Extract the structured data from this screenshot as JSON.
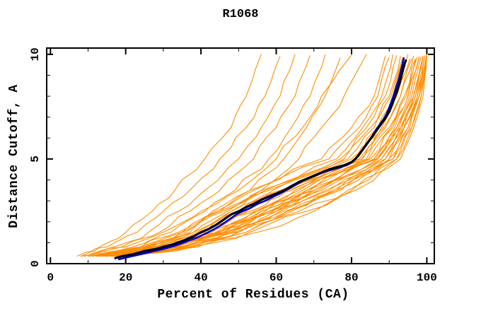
{
  "chart_data": {
    "type": "line",
    "title": "R1068",
    "xlabel": "Percent of Residues (CA)",
    "ylabel": "Distance Cutoff, A",
    "xlim": [
      -1,
      102
    ],
    "ylim": [
      0,
      10.3
    ],
    "grid": false,
    "legend": "none",
    "x_major_ticks": [
      0,
      20,
      40,
      60,
      80,
      100
    ],
    "x_minor_ticks": [
      10,
      30,
      50,
      70,
      90
    ],
    "y_major_ticks": [
      0,
      5,
      10
    ],
    "y_minor_ticks": [
      1,
      2,
      3,
      4,
      6,
      7,
      8,
      9
    ],
    "colors": {
      "ensemble": "#ff8c00",
      "consensus": "#000000",
      "reference": "#0000cc",
      "axis": "#000000",
      "background": "#ffffff"
    },
    "black_curve": [
      [
        17,
        0.25
      ],
      [
        19,
        0.35
      ],
      [
        22,
        0.45
      ],
      [
        25,
        0.6
      ],
      [
        28,
        0.7
      ],
      [
        30,
        0.8
      ],
      [
        33,
        0.95
      ],
      [
        36,
        1.15
      ],
      [
        38,
        1.3
      ],
      [
        40,
        1.5
      ],
      [
        42,
        1.65
      ],
      [
        44,
        1.85
      ],
      [
        46,
        2.1
      ],
      [
        48,
        2.35
      ],
      [
        50,
        2.5
      ],
      [
        52,
        2.7
      ],
      [
        54,
        2.85
      ],
      [
        56,
        3.05
      ],
      [
        58,
        3.2
      ],
      [
        60,
        3.35
      ],
      [
        62,
        3.5
      ],
      [
        64,
        3.7
      ],
      [
        66,
        3.9
      ],
      [
        68,
        4.05
      ],
      [
        70,
        4.2
      ],
      [
        72,
        4.35
      ],
      [
        74,
        4.5
      ],
      [
        76,
        4.6
      ],
      [
        78,
        4.7
      ],
      [
        80,
        4.85
      ],
      [
        81,
        5.0
      ],
      [
        82,
        5.2
      ],
      [
        83,
        5.45
      ],
      [
        84,
        5.7
      ],
      [
        85,
        5.95
      ],
      [
        86,
        6.2
      ],
      [
        87,
        6.45
      ],
      [
        88,
        6.7
      ],
      [
        89,
        6.95
      ],
      [
        90,
        7.25
      ],
      [
        90.8,
        7.6
      ],
      [
        91.5,
        7.95
      ],
      [
        92.2,
        8.3
      ],
      [
        92.8,
        8.65
      ],
      [
        93.3,
        9.0
      ],
      [
        93.8,
        9.35
      ],
      [
        94.2,
        9.6
      ],
      [
        94.5,
        9.75
      ]
    ],
    "blue_curve": [
      [
        18,
        0.2
      ],
      [
        21,
        0.33
      ],
      [
        24,
        0.45
      ],
      [
        27,
        0.58
      ],
      [
        30,
        0.7
      ],
      [
        33,
        0.85
      ],
      [
        36,
        1.05
      ],
      [
        39,
        1.25
      ],
      [
        41,
        1.42
      ],
      [
        43,
        1.6
      ],
      [
        45,
        1.8
      ],
      [
        47,
        2.05
      ],
      [
        49,
        2.3
      ],
      [
        51,
        2.5
      ],
      [
        53,
        2.65
      ],
      [
        55,
        2.85
      ],
      [
        57,
        3.0
      ],
      [
        59,
        3.18
      ],
      [
        61,
        3.35
      ],
      [
        63,
        3.55
      ],
      [
        65,
        3.75
      ],
      [
        67,
        3.95
      ],
      [
        69,
        4.1
      ],
      [
        71,
        4.25
      ],
      [
        73,
        4.4
      ],
      [
        75,
        4.5
      ],
      [
        77,
        4.6
      ],
      [
        79,
        4.72
      ],
      [
        80.5,
        4.9
      ],
      [
        81.5,
        5.1
      ],
      [
        82.5,
        5.35
      ],
      [
        83.5,
        5.6
      ],
      [
        84.5,
        5.85
      ],
      [
        85.5,
        6.1
      ],
      [
        86.5,
        6.4
      ],
      [
        87.5,
        6.65
      ],
      [
        88.5,
        6.9
      ],
      [
        89.3,
        7.15
      ],
      [
        90,
        7.45
      ],
      [
        90.7,
        7.8
      ],
      [
        91.4,
        8.15
      ],
      [
        92,
        8.5
      ],
      [
        92.6,
        8.85
      ],
      [
        93.1,
        9.2
      ],
      [
        93.5,
        9.5
      ],
      [
        93.9,
        9.85
      ]
    ],
    "ensemble_y_levels": [
      0.35,
      0.8,
      1.5,
      2.5,
      3.5,
      5.0,
      6.5,
      8.0,
      9.9
    ],
    "orange_curves_x": [
      [
        7,
        13,
        20,
        27,
        33,
        41,
        48,
        52,
        56
      ],
      [
        8,
        15,
        23,
        30,
        37,
        45,
        52,
        57,
        61
      ],
      [
        9,
        17,
        26,
        34,
        41,
        50,
        56,
        61,
        65
      ],
      [
        8,
        19,
        29,
        37,
        45,
        54,
        60,
        65,
        69
      ],
      [
        10,
        22,
        32,
        41,
        49,
        58,
        64,
        69,
        73
      ],
      [
        11,
        24,
        35,
        45,
        53,
        62,
        68,
        73,
        77
      ],
      [
        9,
        20,
        30,
        40,
        50,
        60,
        67,
        72,
        80
      ],
      [
        12,
        26,
        38,
        48,
        56,
        66,
        72,
        78,
        84
      ],
      [
        13,
        27,
        37,
        46,
        57,
        77,
        84,
        89,
        92
      ],
      [
        14,
        28,
        39,
        48,
        59,
        79,
        86,
        90,
        93
      ],
      [
        15,
        30,
        41,
        50,
        61,
        81,
        87,
        91,
        94
      ],
      [
        16,
        31,
        42,
        52,
        63,
        82,
        88,
        92,
        95
      ],
      [
        15,
        32,
        44,
        54,
        65,
        83,
        89,
        93,
        96
      ],
      [
        16,
        33,
        45,
        55,
        66,
        84,
        90,
        94,
        97
      ],
      [
        17,
        34,
        46,
        57,
        68,
        85,
        91,
        95,
        97.5
      ],
      [
        16,
        35,
        47,
        58,
        69,
        86,
        92,
        95.5,
        98
      ],
      [
        17,
        36,
        48,
        59,
        70,
        87,
        92.5,
        96,
        98.5
      ],
      [
        18,
        37,
        49,
        60,
        71,
        88,
        93,
        96.5,
        99
      ],
      [
        14,
        29,
        40,
        50,
        62,
        80,
        87,
        92,
        95.5
      ],
      [
        13,
        28,
        38,
        47,
        58,
        78,
        85,
        90.5,
        93.5
      ],
      [
        15,
        31,
        43,
        53,
        64,
        82.5,
        88.5,
        93,
        96.5
      ],
      [
        16,
        32,
        45,
        56,
        67,
        84.5,
        90.5,
        94.5,
        97
      ],
      [
        12,
        26,
        36,
        45,
        56,
        76,
        83,
        88,
        91
      ],
      [
        11,
        25,
        35,
        44,
        54,
        74,
        82,
        87,
        90
      ],
      [
        10,
        24,
        34,
        43,
        53,
        72,
        80,
        86,
        89
      ],
      [
        17,
        35,
        47,
        58,
        70,
        86.5,
        91.5,
        95,
        98
      ],
      [
        18,
        38,
        50,
        61,
        73,
        89,
        93.5,
        97,
        99.5
      ],
      [
        19,
        39,
        52,
        63,
        75,
        90,
        94,
        97.5,
        100
      ],
      [
        14,
        30,
        45,
        58,
        72,
        88,
        94,
        97,
        99
      ],
      [
        15,
        33,
        48,
        62,
        76,
        91,
        95,
        98,
        100
      ],
      [
        16,
        36,
        52,
        66,
        79,
        92,
        96,
        98.5,
        100
      ],
      [
        13,
        29,
        44,
        60,
        74,
        90,
        95,
        98,
        99.5
      ],
      [
        12,
        27,
        42,
        56,
        70,
        87,
        93,
        96.5,
        99
      ],
      [
        17,
        37,
        53,
        68,
        80,
        93,
        96.5,
        99,
        100
      ],
      [
        12,
        25,
        40,
        55,
        68,
        86,
        92,
        96.5,
        99
      ],
      [
        13,
        30,
        50,
        64,
        76,
        89,
        94,
        97.5,
        100
      ],
      [
        14,
        34,
        55,
        70,
        81,
        92,
        96,
        98.5,
        100
      ],
      [
        12,
        28,
        46,
        63,
        77,
        91,
        95.5,
        98,
        100
      ]
    ]
  }
}
